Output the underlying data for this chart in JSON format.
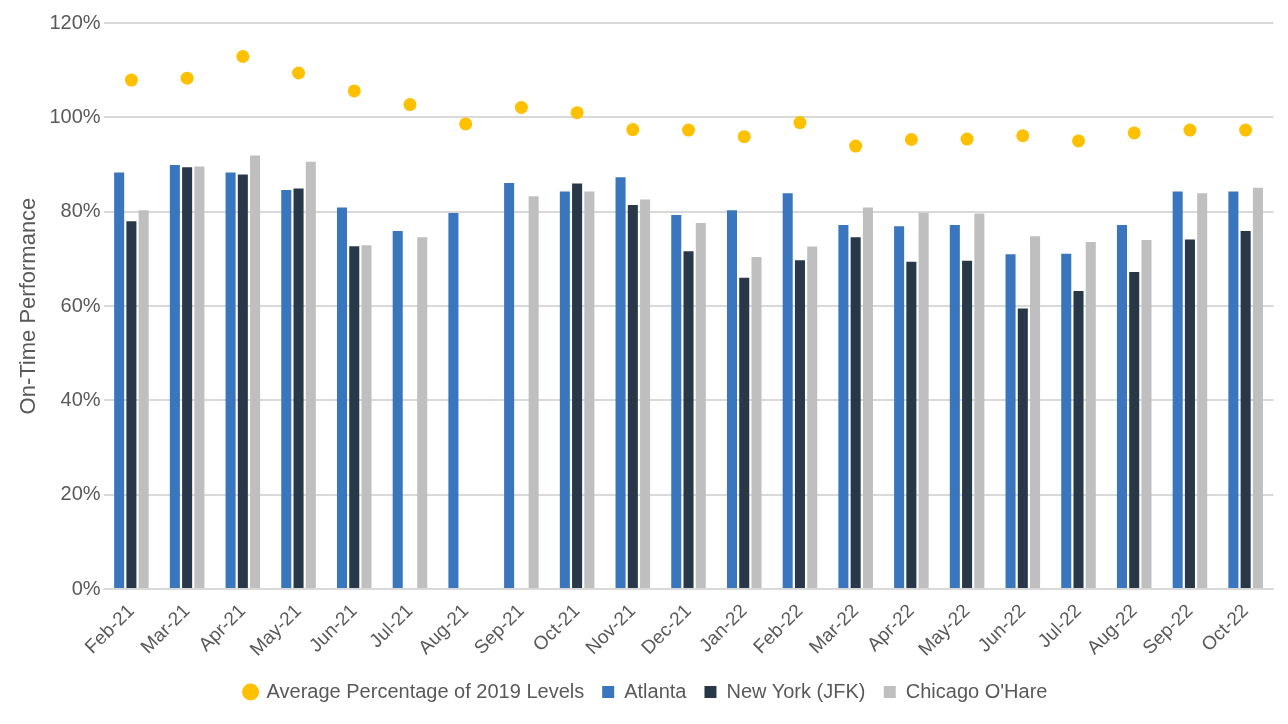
{
  "chart_data": {
    "type": "bar",
    "ylabel": "On-Time Performance",
    "categories": [
      "Feb-21",
      "Mar-21",
      "Apr-21",
      "May-21",
      "Jun-21",
      "Jul-21",
      "Aug-21",
      "Sep-21",
      "Oct-21",
      "Nov-21",
      "Dec-21",
      "Jan-22",
      "Feb-22",
      "Mar-22",
      "Apr-22",
      "May-22",
      "Jun-22",
      "Jul-22",
      "Aug-22",
      "Sep-22",
      "Oct-22"
    ],
    "series": [
      {
        "name": "Atlanta",
        "color": "#3a76bd",
        "values": [
          88.3,
          89.9,
          88.3,
          84.6,
          80.9,
          75.9,
          79.7,
          86.1,
          84.3,
          87.3,
          79.3,
          80.3,
          83.9,
          77.2,
          76.9,
          77.2,
          71.0,
          71.1,
          77.2,
          84.3,
          84.3
        ]
      },
      {
        "name": "New York (JFK)",
        "color": "#283849",
        "values": [
          78.0,
          89.4,
          87.9,
          84.9,
          72.7,
          null,
          null,
          null,
          86.0,
          81.4,
          71.6,
          66.0,
          69.7,
          74.6,
          69.4,
          69.6,
          59.5,
          63.2,
          67.2,
          74.1,
          75.9
        ]
      },
      {
        "name": "Chicago O'Hare",
        "color": "#bfbfbf",
        "values": [
          80.3,
          89.6,
          91.9,
          90.6,
          72.9,
          74.6,
          null,
          83.3,
          84.3,
          82.6,
          77.6,
          70.4,
          72.6,
          80.9,
          79.8,
          79.6,
          74.8,
          73.6,
          74.0,
          83.9,
          85.1
        ]
      },
      {
        "name": "Average Percentage of 2019 Levels",
        "type": "scatter",
        "color": "#ffc000",
        "values": [
          107.9,
          108.3,
          112.9,
          109.4,
          105.6,
          102.7,
          98.6,
          102.1,
          101.0,
          97.4,
          97.3,
          95.9,
          98.9,
          93.9,
          95.3,
          95.4,
          96.1,
          95.0,
          96.7,
          97.3,
          97.3
        ]
      }
    ],
    "ylim": [
      0,
      120
    ],
    "yticks": [
      {
        "value": 0,
        "label": "0%"
      },
      {
        "value": 20,
        "label": "20%"
      },
      {
        "value": 40,
        "label": "40%"
      },
      {
        "value": 60,
        "label": "60%"
      },
      {
        "value": 80,
        "label": "80%"
      },
      {
        "value": 100,
        "label": "100%"
      },
      {
        "value": 120,
        "label": "120%"
      }
    ],
    "grid": "y",
    "legend": "bottom",
    "marker": "circle"
  }
}
